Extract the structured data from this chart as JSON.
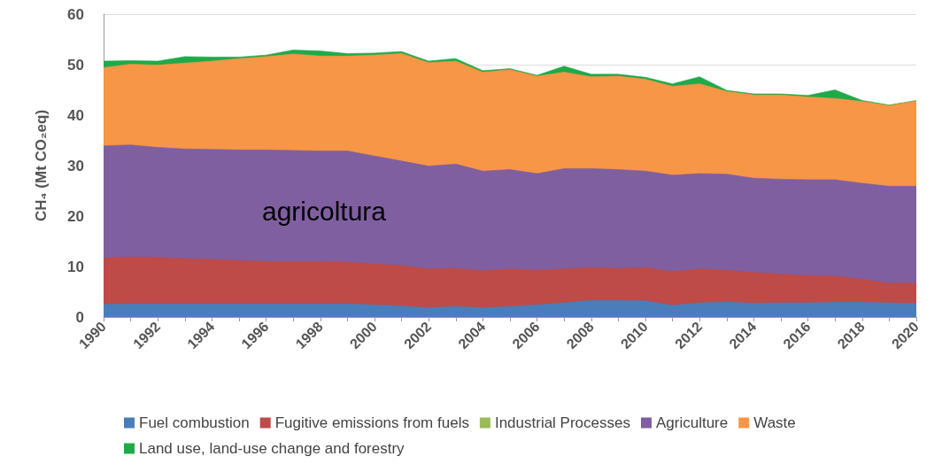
{
  "chart_data": {
    "type": "area",
    "stacked": true,
    "ylabel": "CH₄ (Mt CO₂eq)",
    "x": [
      1990,
      1991,
      1992,
      1993,
      1994,
      1995,
      1996,
      1997,
      1998,
      1999,
      2000,
      2001,
      2002,
      2003,
      2004,
      2005,
      2006,
      2007,
      2008,
      2009,
      2010,
      2011,
      2012,
      2013,
      2014,
      2015,
      2016,
      2017,
      2018,
      2019,
      2020
    ],
    "xlim": [
      1990,
      2020
    ],
    "xticks": [
      1990,
      {
        "value": 1991,
        "label": null
      },
      1992,
      {
        "value": 1993,
        "label": null
      },
      1994,
      {
        "value": 1995,
        "label": null
      },
      1996,
      {
        "value": 1997,
        "label": null
      },
      1998,
      {
        "value": 1999,
        "label": null
      },
      2000,
      {
        "value": 2001,
        "label": null
      },
      2002,
      {
        "value": 2003,
        "label": null
      },
      2004,
      {
        "value": 2005,
        "label": null
      },
      2006,
      {
        "value": 2007,
        "label": null
      },
      2008,
      {
        "value": 2009,
        "label": null
      },
      2010,
      {
        "value": 2011,
        "label": null
      },
      2012,
      {
        "value": 2013,
        "label": null
      },
      2014,
      {
        "value": 2015,
        "label": null
      },
      2016,
      {
        "value": 2017,
        "label": null
      },
      2018,
      {
        "value": 2019,
        "label": null
      },
      2020
    ],
    "ylim": [
      0,
      60
    ],
    "yticks": [
      0,
      10,
      20,
      30,
      40,
      50,
      60
    ],
    "grid": "y",
    "legend": "bottom",
    "series": [
      {
        "name": "Fuel combustion",
        "color": "#4a7ebb",
        "values": [
          2.5,
          2.6,
          2.6,
          2.6,
          2.6,
          2.6,
          2.6,
          2.6,
          2.6,
          2.6,
          2.4,
          2.2,
          1.8,
          2.1,
          1.8,
          2.1,
          2.4,
          2.8,
          3.3,
          3.3,
          3.2,
          2.3,
          2.8,
          3.0,
          2.7,
          2.8,
          2.8,
          2.9,
          2.9,
          2.8,
          2.7
        ]
      },
      {
        "name": "Fugitive emissions from fuels",
        "color": "#be4b48",
        "values": [
          9.2,
          9.3,
          9.2,
          9.0,
          8.8,
          8.6,
          8.4,
          8.4,
          8.4,
          8.3,
          8.1,
          8.0,
          7.7,
          7.5,
          7.4,
          7.4,
          6.9,
          6.7,
          6.5,
          6.3,
          6.6,
          6.7,
          6.7,
          6.3,
          6.1,
          5.7,
          5.4,
          5.2,
          4.6,
          3.9,
          4.0
        ]
      },
      {
        "name": "Industrial Processes",
        "color": "#9bbb59",
        "values": [
          null,
          null,
          null,
          null,
          null,
          null,
          null,
          null,
          null,
          null,
          null,
          null,
          null,
          null,
          null,
          null,
          null,
          null,
          null,
          null,
          null,
          null,
          null,
          null,
          null,
          null,
          null,
          null,
          null,
          null,
          null
        ]
      },
      {
        "name": "Agriculture",
        "color": "#7f5fa0",
        "values": [
          22.2,
          22.2,
          21.8,
          21.7,
          21.8,
          21.9,
          22.1,
          22.0,
          21.9,
          22.0,
          21.4,
          20.7,
          20.4,
          20.7,
          19.7,
          19.7,
          19.1,
          19.9,
          19.6,
          19.6,
          19.1,
          19.1,
          18.9,
          19.0,
          18.7,
          18.8,
          19.0,
          19.1,
          19.0,
          19.2,
          19.2
        ]
      },
      {
        "name": "Waste",
        "color": "#f79646",
        "values": [
          15.5,
          16.0,
          16.3,
          17.0,
          17.5,
          18.1,
          18.5,
          19.1,
          18.8,
          18.8,
          20.0,
          21.3,
          20.5,
          20.4,
          19.6,
          19.8,
          19.3,
          19.1,
          18.2,
          18.5,
          18.2,
          17.6,
          17.8,
          16.4,
          16.5,
          16.7,
          16.4,
          16.1,
          16.2,
          16.0,
          16.9
        ]
      },
      {
        "name": "Land use, land-use change and forestry",
        "color": "#1faa4a",
        "values": [
          1.3,
          0.7,
          0.8,
          1.3,
          0.8,
          0.3,
          0.3,
          0.8,
          1.0,
          0.5,
          0.4,
          0.4,
          0.3,
          0.5,
          0.3,
          0.2,
          0.2,
          1.2,
          0.5,
          0.4,
          0.4,
          0.5,
          1.4,
          0.2,
          0.2,
          0.2,
          0.3,
          1.7,
          0.2,
          0.1,
          0.1
        ]
      }
    ],
    "annotations": [
      "agricoltura"
    ]
  }
}
